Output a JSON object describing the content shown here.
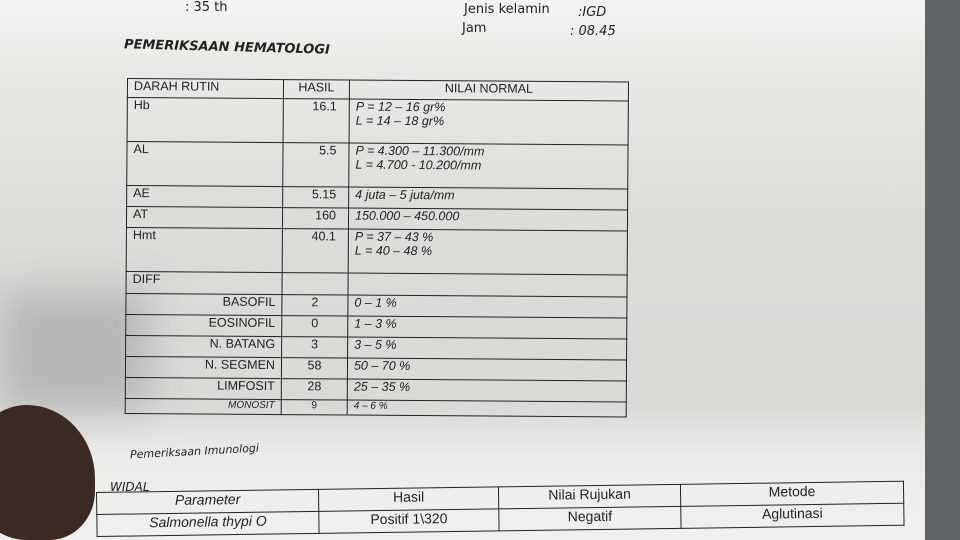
{
  "header": {
    "umur_partial": ": 35 th",
    "jenis_kelamin_label": "Jenis kelamin",
    "jenis_kelamin_value": ":IGD",
    "jam_label": "Jam",
    "jam_value": ": 08.45"
  },
  "hematologi": {
    "title": "PEMERIKSAAN HEMATOLOGI",
    "columns": [
      "DARAH RUTIN",
      "HASIL",
      "NILAI NORMAL"
    ],
    "rows": [
      {
        "name": "Hb",
        "hasil": "16.1",
        "normal": [
          "P = 12 – 16 gr%",
          "L = 14 – 18 gr%"
        ]
      },
      {
        "name": "AL",
        "hasil": "5.5",
        "normal": [
          "P = 4.300 – 11.300/mm",
          "L = 4.700 -  10.200/mm"
        ]
      },
      {
        "name": "AE",
        "hasil": "5.15",
        "normal": [
          "4 juta – 5 juta/mm"
        ]
      },
      {
        "name": "AT",
        "hasil": "160",
        "normal": [
          "150.000 – 450.000"
        ]
      },
      {
        "name": "Hmt",
        "hasil": "40.1",
        "normal": [
          "P = 37 – 43 %",
          "L = 40 – 48 %"
        ]
      }
    ],
    "diff_label": "DIFF",
    "diff": [
      {
        "name": "BASOFIL",
        "hasil": "2",
        "normal": "0 – 1 %"
      },
      {
        "name": "EOSINOFIL",
        "hasil": "0",
        "normal": "1 – 3 %"
      },
      {
        "name": "N. BATANG",
        "hasil": "3",
        "normal": "3 – 5 %"
      },
      {
        "name": "N. SEGMEN",
        "hasil": "58",
        "normal": "50 – 70 %"
      },
      {
        "name": "LIMFOSIT",
        "hasil": "28",
        "normal": "25 – 35 %"
      },
      {
        "name": "MONOSIT",
        "hasil": "9",
        "normal": "4 – 6 %"
      }
    ]
  },
  "imunologi": {
    "title": "Pemeriksaan Imunologi",
    "widal_label": "WIDAL",
    "columns": [
      "Parameter",
      "Hasil",
      "Nilai Rujukan",
      "Metode"
    ],
    "rows": [
      {
        "parameter": "Salmonella thypi O",
        "hasil": "Positif 1\\320",
        "rujukan": "Negatif",
        "metode": "Aglutinasi"
      }
    ]
  }
}
